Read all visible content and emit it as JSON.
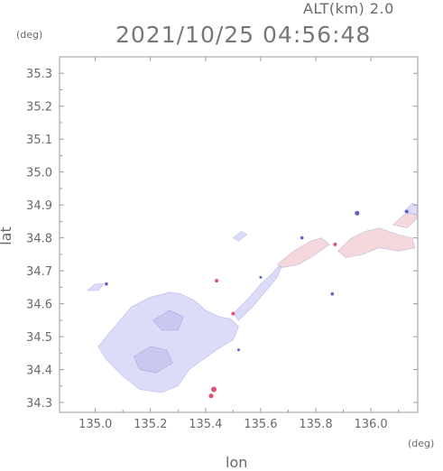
{
  "header": {
    "altitude_label": "ALT(km)  2.0",
    "timestamp": "2021/10/25 04:56:48"
  },
  "chart_data": {
    "type": "heatmap",
    "xlabel": "lon",
    "ylabel": "lat",
    "x_unit": "(deg)",
    "y_unit": "(deg)",
    "xlim": [
      134.87,
      136.17
    ],
    "ylim": [
      34.27,
      35.35
    ],
    "x_ticks": [
      135.0,
      135.2,
      135.4,
      135.6,
      135.8,
      136.0
    ],
    "y_ticks": [
      34.3,
      34.4,
      34.5,
      34.6,
      34.7,
      34.8,
      34.9,
      35.0,
      35.1,
      35.2,
      35.3
    ],
    "x_tick_labels": [
      "135.0",
      "135.2",
      "135.4",
      "135.6",
      "135.8",
      "136.0"
    ],
    "y_tick_labels": [
      "34.3",
      "34.4",
      "34.5",
      "34.6",
      "34.7",
      "34.8",
      "34.9",
      "35.0",
      "35.1",
      "35.2",
      "35.3"
    ],
    "grid": false,
    "colors": {
      "main": "#dcdcf8",
      "dark": "#c8c8f0",
      "pink": "#f4d8dc",
      "accent": "#e05070",
      "edge": "#6060c8"
    },
    "regions": [
      {
        "name": "main-blob",
        "color": "main",
        "points": [
          [
            135.01,
            34.47
          ],
          [
            135.06,
            34.52
          ],
          [
            135.13,
            34.59
          ],
          [
            135.2,
            34.62
          ],
          [
            135.27,
            34.635
          ],
          [
            135.31,
            34.63
          ],
          [
            135.36,
            34.61
          ],
          [
            135.4,
            34.58
          ],
          [
            135.45,
            34.56
          ],
          [
            135.49,
            34.555
          ],
          [
            135.52,
            34.53
          ],
          [
            135.5,
            34.49
          ],
          [
            135.44,
            34.46
          ],
          [
            135.39,
            34.43
          ],
          [
            135.34,
            34.4
          ],
          [
            135.3,
            34.35
          ],
          [
            135.24,
            34.33
          ],
          [
            135.16,
            34.34
          ],
          [
            135.1,
            34.38
          ],
          [
            135.04,
            34.43
          ]
        ]
      },
      {
        "name": "inner-dark-1",
        "color": "dark",
        "points": [
          [
            135.14,
            34.44
          ],
          [
            135.2,
            34.47
          ],
          [
            135.26,
            34.46
          ],
          [
            135.28,
            34.42
          ],
          [
            135.22,
            34.39
          ],
          [
            135.16,
            34.4
          ]
        ]
      },
      {
        "name": "inner-dark-2",
        "color": "dark",
        "points": [
          [
            135.21,
            34.55
          ],
          [
            135.27,
            34.58
          ],
          [
            135.32,
            34.56
          ],
          [
            135.3,
            34.52
          ],
          [
            135.24,
            34.52
          ]
        ]
      },
      {
        "name": "band-1",
        "color": "main",
        "points": [
          [
            135.5,
            34.57
          ],
          [
            135.56,
            34.62
          ],
          [
            135.6,
            34.66
          ],
          [
            135.64,
            34.69
          ],
          [
            135.66,
            34.71
          ],
          [
            135.68,
            34.72
          ],
          [
            135.66,
            34.68
          ],
          [
            135.62,
            34.64
          ],
          [
            135.57,
            34.59
          ],
          [
            135.52,
            34.55
          ]
        ]
      },
      {
        "name": "band-2",
        "color": "pink",
        "points": [
          [
            135.66,
            34.72
          ],
          [
            135.72,
            34.76
          ],
          [
            135.78,
            34.79
          ],
          [
            135.82,
            34.8
          ],
          [
            135.85,
            34.78
          ],
          [
            135.8,
            34.75
          ],
          [
            135.74,
            34.72
          ],
          [
            135.68,
            34.71
          ]
        ]
      },
      {
        "name": "east-patch-1",
        "color": "pink",
        "points": [
          [
            135.88,
            34.76
          ],
          [
            135.93,
            34.8
          ],
          [
            135.98,
            34.82
          ],
          [
            136.03,
            34.83
          ],
          [
            136.1,
            34.81
          ],
          [
            136.15,
            34.8
          ],
          [
            136.16,
            34.77
          ],
          [
            136.1,
            34.76
          ],
          [
            136.03,
            34.77
          ],
          [
            135.97,
            34.75
          ],
          [
            135.91,
            34.74
          ]
        ]
      },
      {
        "name": "east-patch-2",
        "color": "pink",
        "points": [
          [
            136.08,
            34.84
          ],
          [
            136.12,
            34.87
          ],
          [
            136.16,
            34.89
          ],
          [
            136.17,
            34.86
          ],
          [
            136.13,
            34.83
          ]
        ]
      },
      {
        "name": "east-patch-3",
        "color": "main",
        "points": [
          [
            136.12,
            34.88
          ],
          [
            136.15,
            34.905
          ],
          [
            136.17,
            34.9
          ],
          [
            136.165,
            34.87
          ]
        ]
      },
      {
        "name": "west-fragment",
        "color": "main",
        "points": [
          [
            134.97,
            34.64
          ],
          [
            135.0,
            34.66
          ],
          [
            135.03,
            34.66
          ],
          [
            135.01,
            34.64
          ]
        ]
      },
      {
        "name": "upper-fragment",
        "color": "main",
        "points": [
          [
            135.5,
            34.8
          ],
          [
            135.53,
            34.82
          ],
          [
            135.55,
            34.81
          ],
          [
            135.52,
            34.79
          ]
        ]
      }
    ],
    "markers": [
      {
        "name": "accent-1",
        "color": "accent",
        "lon": 135.43,
        "lat": 34.34,
        "size": 3
      },
      {
        "name": "accent-2",
        "color": "accent",
        "lon": 135.42,
        "lat": 34.32,
        "size": 2.5
      },
      {
        "name": "accent-3",
        "color": "accent",
        "lon": 135.5,
        "lat": 34.57,
        "size": 2
      },
      {
        "name": "accent-4",
        "color": "accent",
        "lon": 135.44,
        "lat": 34.67,
        "size": 2
      },
      {
        "name": "accent-5",
        "color": "accent",
        "lon": 135.87,
        "lat": 34.78,
        "size": 2
      },
      {
        "name": "edge-1",
        "color": "edge",
        "lon": 135.95,
        "lat": 34.875,
        "size": 2.5
      },
      {
        "name": "edge-2",
        "color": "edge",
        "lon": 136.13,
        "lat": 34.88,
        "size": 2
      },
      {
        "name": "edge-3",
        "color": "edge",
        "lon": 135.75,
        "lat": 34.8,
        "size": 1.8
      },
      {
        "name": "edge-4",
        "color": "edge",
        "lon": 135.86,
        "lat": 34.63,
        "size": 1.8
      },
      {
        "name": "edge-5",
        "color": "edge",
        "lon": 135.04,
        "lat": 34.66,
        "size": 1.8
      },
      {
        "name": "edge-6",
        "color": "edge",
        "lon": 135.52,
        "lat": 34.46,
        "size": 1.5
      },
      {
        "name": "edge-7",
        "color": "edge",
        "lon": 135.6,
        "lat": 34.68,
        "size": 1.5
      }
    ]
  }
}
